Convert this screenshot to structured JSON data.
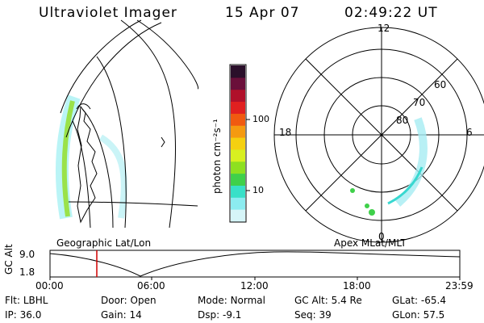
{
  "header": {
    "instrument": "Ultraviolet Imager",
    "date": "15 Apr 07",
    "time": "02:49:22 UT"
  },
  "colorbar": {
    "unit_label": "photon cm⁻²s⁻¹",
    "ticks": [
      "100",
      "10"
    ],
    "colors": [
      "#2a0f2a",
      "#6a0f3a",
      "#b0102a",
      "#e02020",
      "#f05a10",
      "#f59a10",
      "#f5d010",
      "#d8f020",
      "#8ee020",
      "#3fd04a",
      "#38e0c8",
      "#8cecf0",
      "#d6f5f8"
    ]
  },
  "polar": {
    "mlt_labels": [
      "12",
      "18",
      "6",
      "0"
    ],
    "lat_labels": [
      "60",
      "70",
      "80"
    ]
  },
  "captions": {
    "left": "Geographic Lat/Lon",
    "right": "Apex MLat/MLT"
  },
  "altitude_plot": {
    "ylabel": "GC Alt",
    "yticks": [
      "9.0",
      "1.8"
    ],
    "xticks": [
      "00:00",
      "06:00",
      "12:00",
      "18:00",
      "23:59"
    ],
    "marker_color": "#d00000"
  },
  "status": {
    "row1": [
      {
        "label": "Flt:",
        "value": "LBHL"
      },
      {
        "label": "Door:",
        "value": "Open"
      },
      {
        "label": "Mode:",
        "value": "Normal"
      },
      {
        "label": "GC Alt:",
        "value": "5.4 Re"
      },
      {
        "label": "GLat:",
        "value": "-65.4"
      }
    ],
    "row2": [
      {
        "label": "IP:",
        "value": "36.0"
      },
      {
        "label": "Gain:",
        "value": "14"
      },
      {
        "label": "Dsp:",
        "value": "-9.1"
      },
      {
        "label": "Seq:",
        "value": "39"
      },
      {
        "label": "GLon:",
        "value": "57.5"
      }
    ]
  }
}
